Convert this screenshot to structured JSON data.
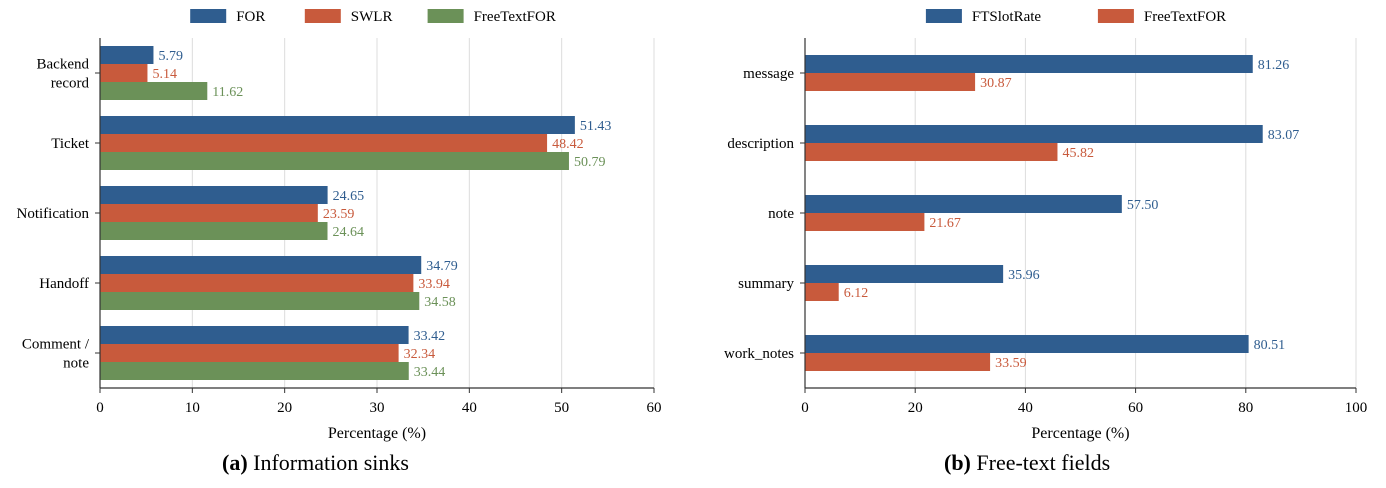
{
  "colors": {
    "blue": "#2f5d8f",
    "red": "#c85a3c",
    "green": "#6b9158"
  },
  "captions": [
    {
      "letter": "(a)",
      "text": "Information sinks"
    },
    {
      "letter": "(b)",
      "text": "Free-text fields"
    }
  ],
  "chart_data": [
    {
      "type": "bar",
      "orientation": "horizontal",
      "categories": [
        "Backend record",
        "Ticket",
        "Notification",
        "Handoff",
        "Comment / note"
      ],
      "category_lines": [
        [
          "Backend",
          "record"
        ],
        [
          "Ticket"
        ],
        [
          "Notification"
        ],
        [
          "Handoff"
        ],
        [
          "Comment /",
          "note"
        ]
      ],
      "series": [
        {
          "name": "FOR",
          "color": "#2f5d8f",
          "values": [
            5.79,
            51.43,
            24.65,
            34.79,
            33.42
          ],
          "labels": [
            "5.79",
            "51.43",
            "24.65",
            "34.79",
            "33.42"
          ]
        },
        {
          "name": "SWLR",
          "color": "#c85a3c",
          "values": [
            5.14,
            48.42,
            23.59,
            33.94,
            32.34
          ],
          "labels": [
            "5.14",
            "48.42",
            "23.59",
            "33.94",
            "32.34"
          ]
        },
        {
          "name": "FreeTextFOR",
          "color": "#6b9158",
          "values": [
            11.62,
            50.79,
            24.64,
            34.58,
            33.44
          ],
          "labels": [
            "11.62",
            "50.79",
            "24.64",
            "34.58",
            "33.44"
          ]
        }
      ],
      "xlabel": "Percentage (%)",
      "ylabel": "",
      "xlim": [
        0,
        60
      ],
      "xticks": [
        0,
        10,
        20,
        30,
        40,
        50,
        60
      ],
      "xtick_labels": [
        "0",
        "10",
        "20",
        "30",
        "40",
        "50",
        "60"
      ],
      "grid": "x",
      "legend": "top-center"
    },
    {
      "type": "bar",
      "orientation": "horizontal",
      "categories": [
        "message",
        "description",
        "note",
        "summary",
        "work_notes"
      ],
      "category_lines": [
        [
          "message"
        ],
        [
          "description"
        ],
        [
          "note"
        ],
        [
          "summary"
        ],
        [
          "work_notes"
        ]
      ],
      "series": [
        {
          "name": "FTSlotRate",
          "color": "#2f5d8f",
          "values": [
            81.26,
            83.07,
            57.5,
            35.96,
            80.51
          ],
          "labels": [
            "81.26",
            "83.07",
            "57.50",
            "35.96",
            "80.51"
          ]
        },
        {
          "name": "FreeTextFOR",
          "color": "#c85a3c",
          "values": [
            30.87,
            45.82,
            21.67,
            6.12,
            33.59
          ],
          "labels": [
            "30.87",
            "45.82",
            "21.67",
            "6.12",
            "33.59"
          ]
        }
      ],
      "xlabel": "Percentage (%)",
      "ylabel": "",
      "xlim": [
        0,
        100
      ],
      "xticks": [
        0,
        20,
        40,
        60,
        80,
        100
      ],
      "xtick_labels": [
        "0",
        "20",
        "40",
        "60",
        "80",
        "100"
      ],
      "grid": "x",
      "legend": "top-center"
    }
  ]
}
